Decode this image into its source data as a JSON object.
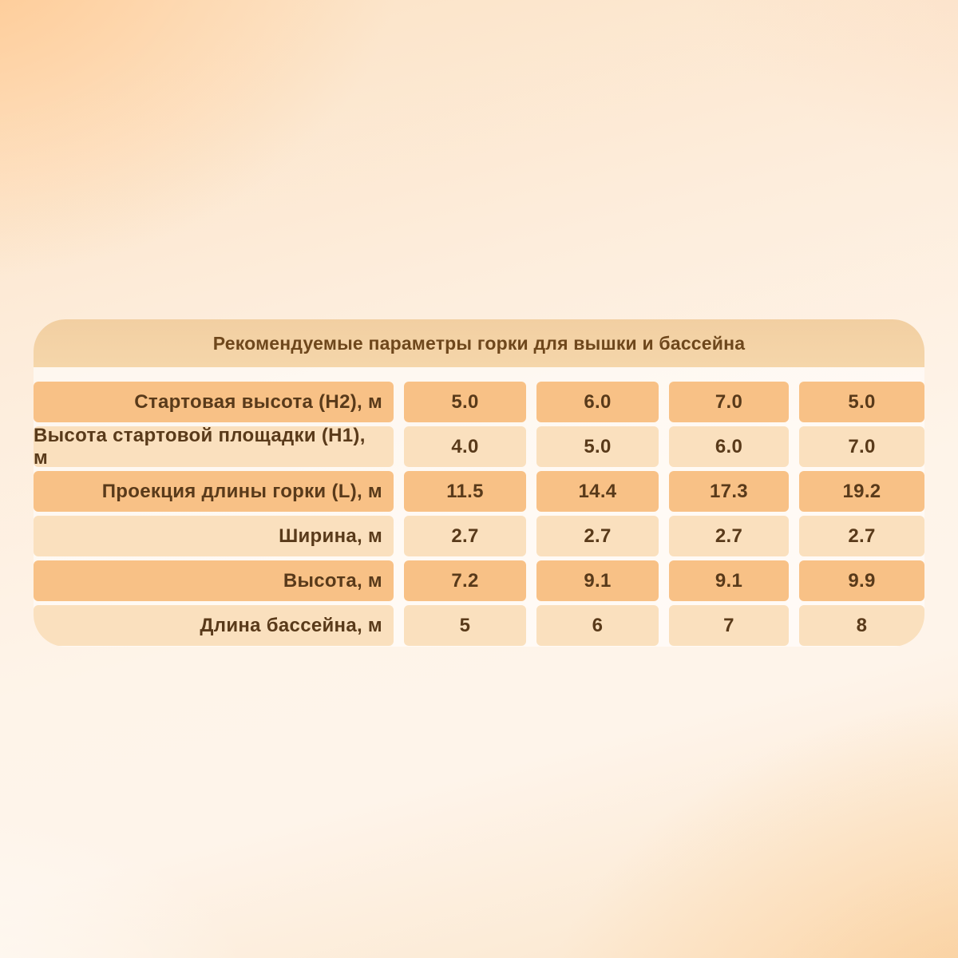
{
  "chart_data": {
    "type": "table",
    "title": "Рекомендуемые параметры горки для вышки и бассейна",
    "rows": [
      {
        "label": "Стартовая высота (H2), м",
        "values": [
          "5.0",
          "6.0",
          "7.0",
          "5.0"
        ]
      },
      {
        "label": "Высота стартовой площадки (H1), м",
        "values": [
          "4.0",
          "5.0",
          "6.0",
          "7.0"
        ]
      },
      {
        "label": "Проекция длины горки (L), м",
        "values": [
          "11.5",
          "14.4",
          "17.3",
          "19.2"
        ]
      },
      {
        "label": "Ширина, м",
        "values": [
          "2.7",
          "2.7",
          "2.7",
          "2.7"
        ]
      },
      {
        "label": "Высота, м",
        "values": [
          "7.2",
          "9.1",
          "9.1",
          "9.9"
        ]
      },
      {
        "label": "Длина бассейна, м",
        "values": [
          "5",
          "6",
          "7",
          "8"
        ]
      }
    ],
    "layout": {
      "columns_count": 5,
      "legend": "none",
      "grid": "off"
    }
  },
  "colors": {
    "row_dark": "#F8C186",
    "row_light": "#FAE0BE",
    "header_band": "#F4D3A7",
    "title_text": "#6E471C",
    "cell_text": "#593A1A",
    "card_gap": "#F7F1E9",
    "background_corner_orange": "#FFC78E",
    "background_center": "#FEF4E9"
  }
}
